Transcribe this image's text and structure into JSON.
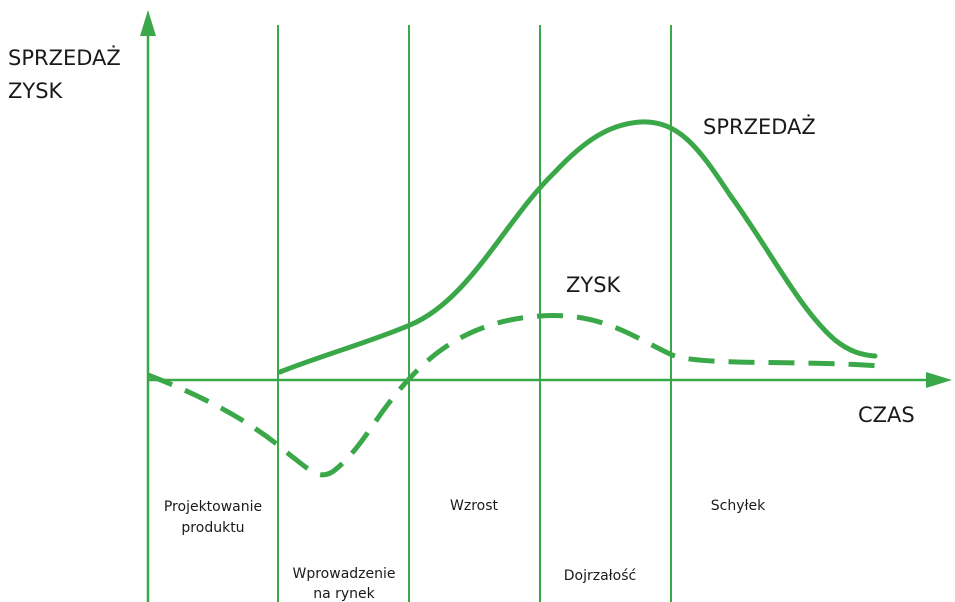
{
  "colors": {
    "line": "#3aa849",
    "text": "#1a1a1a",
    "background": "#ffffff"
  },
  "y_axis_label": [
    "SPRZEDAŻ",
    "ZYSK"
  ],
  "x_axis_label": "CZAS",
  "curve_labels": {
    "sales": "SPRZEDAŻ",
    "profit": "ZYSK"
  },
  "stages": [
    {
      "lines": [
        "Projektowanie",
        "produktu"
      ]
    },
    {
      "lines": [
        "Wprowadzenie",
        "na rynek"
      ]
    },
    {
      "lines": [
        "Wzrost"
      ]
    },
    {
      "lines": [
        "Dojrzałość"
      ]
    },
    {
      "lines": [
        "Schyłek"
      ]
    }
  ]
}
